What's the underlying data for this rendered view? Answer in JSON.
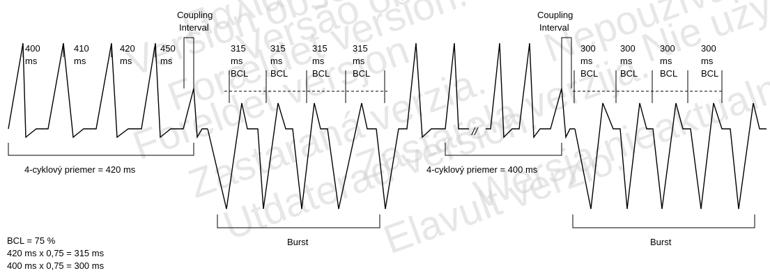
{
  "watermark": [
    "Version obsolète.",
    "Forældet version.",
    "Παλιά έκδοση.",
    "Versão obsoleta.",
    "Foreldet versjon.",
    "Zastaraná verzia.",
    "Utdaterad version.",
    "Elavult verzió.",
    "Zastarela verzija.",
    "Nepoužívat.",
    "Wersja nieaktualna.",
    "Nie używać."
  ],
  "intervals_left": [
    "400",
    "410",
    "420",
    "450"
  ],
  "intervals_left_unit": "ms",
  "burst_left": {
    "value": "315",
    "unit": "ms",
    "label": "BCL"
  },
  "burst_right": {
    "value": "300",
    "unit": "ms",
    "label": "BCL"
  },
  "coupling": {
    "line1": "Coupling",
    "line2": "Interval"
  },
  "avg_left": "4-cyklový priemer = 420 ms",
  "avg_right": "4-cyklový priemer = 400 ms",
  "burst_label": "Burst",
  "break_mark": "//",
  "notes": [
    "BCL = 75 %",
    "420 ms x 0,75 = 315 ms",
    "400 ms x 0,75 = 300 ms"
  ]
}
